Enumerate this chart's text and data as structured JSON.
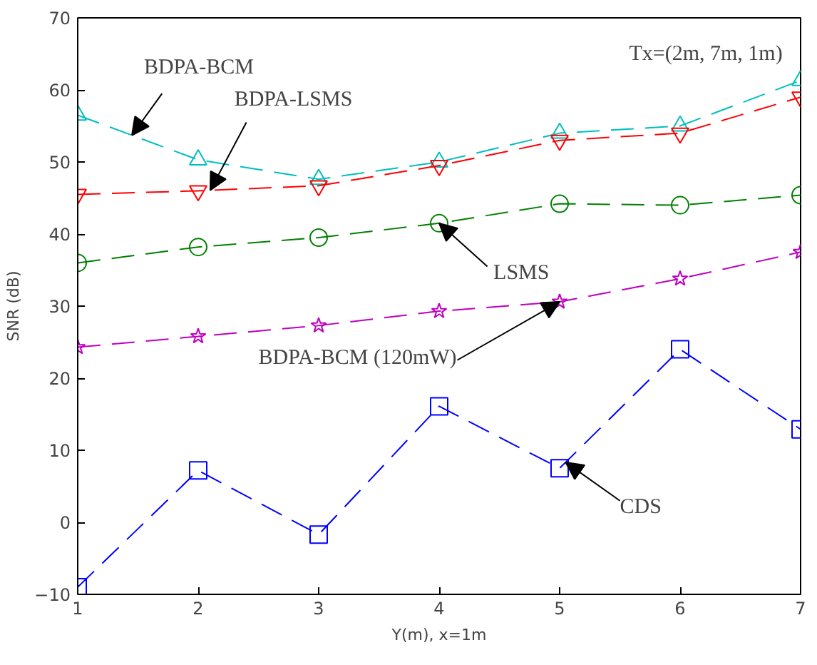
{
  "chart_data": {
    "type": "line",
    "xlabel": "Y(m), x=1m",
    "ylabel": "SNR (dB)",
    "x": [
      1,
      2,
      3,
      4,
      5,
      6,
      7
    ],
    "series": [
      {
        "name": "BDPA-BCM",
        "color": "#00bfbf",
        "marker": "triangle",
        "values": [
          56.5,
          50.3,
          47.6,
          50,
          54,
          55,
          61.3
        ]
      },
      {
        "name": "BDPA-LSMS",
        "color": "#ff0000",
        "marker": "triangle_down",
        "values": [
          45.5,
          46,
          46.7,
          49.5,
          53,
          54,
          59
        ]
      },
      {
        "name": "LSMS",
        "color": "#008000",
        "marker": "circle",
        "values": [
          36,
          38.2,
          39.5,
          41.5,
          44.2,
          44,
          45.4
        ]
      },
      {
        "name": "BDPA-BCM (120mW)",
        "color": "#bf00bf",
        "marker": "star",
        "values": [
          24.3,
          25.8,
          27.3,
          29.3,
          30.6,
          33.8,
          37.5
        ]
      },
      {
        "name": "CDS",
        "color": "#0000ff",
        "marker": "square",
        "values": [
          -9,
          7.2,
          -1.7,
          16.1,
          7.5,
          24,
          12.9
        ]
      }
    ],
    "annotations": [
      "Tx=(2m, 7m, 1m)"
    ],
    "xlim": [
      1,
      7
    ],
    "ylim": [
      -10,
      70
    ],
    "xticks": [
      1,
      2,
      3,
      4,
      5,
      6,
      7
    ],
    "yticks": [
      -10,
      0,
      10,
      20,
      30,
      40,
      50,
      60,
      70
    ],
    "line_style": "dashed",
    "grid": false
  }
}
